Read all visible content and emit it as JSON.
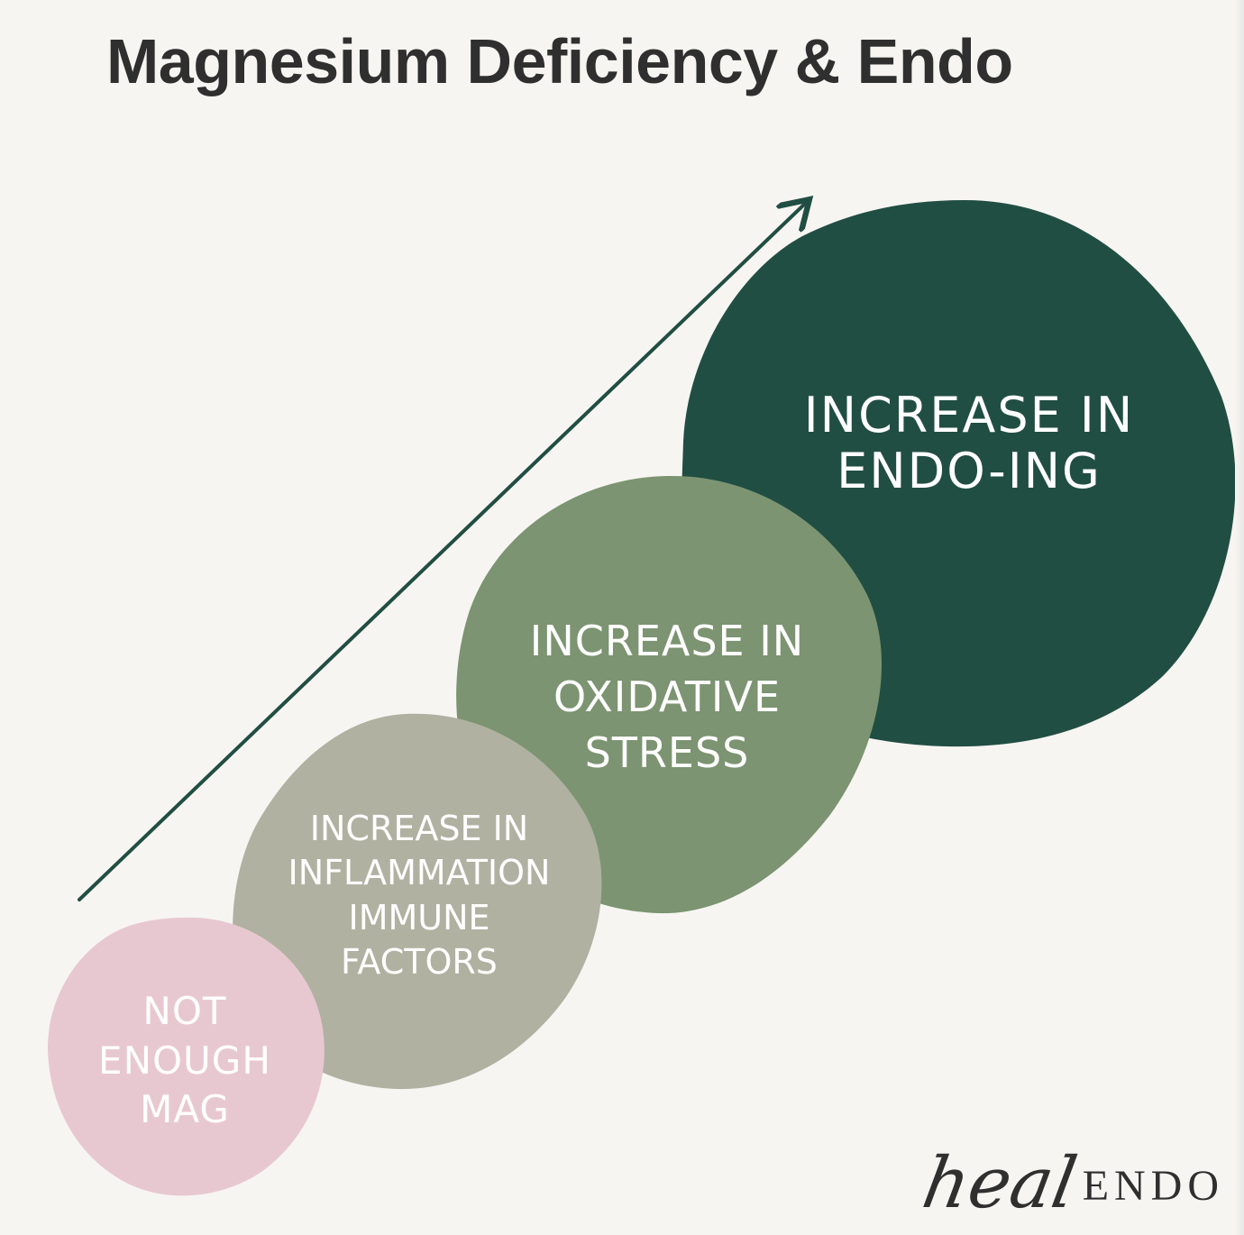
{
  "title": "Magnesium Deficiency & Endo",
  "colors": {
    "background": "#f7f5f2",
    "title_text": "#2f2f2f",
    "arrow": "#214e43",
    "endo_blob": "#214e43",
    "oxidative_blob": "#7c9471",
    "inflammation_blob": "#b0b1a1",
    "mag_blob": "#e8c8d0",
    "label_text": "#ffffff"
  },
  "steps": [
    {
      "id": "mag",
      "lines": [
        "NOT",
        "ENOUGH",
        "MAG"
      ]
    },
    {
      "id": "inflammation",
      "lines": [
        "INCREASE IN",
        "INFLAMMATION",
        "IMMUNE",
        "FACTORS"
      ]
    },
    {
      "id": "oxidative",
      "lines": [
        "INCREASE IN",
        "OXIDATIVE",
        "STRESS"
      ]
    },
    {
      "id": "endo",
      "lines": [
        "INCREASE IN",
        "ENDO-ING"
      ]
    }
  ],
  "logo": {
    "script": "heal",
    "word": "ENDO"
  }
}
